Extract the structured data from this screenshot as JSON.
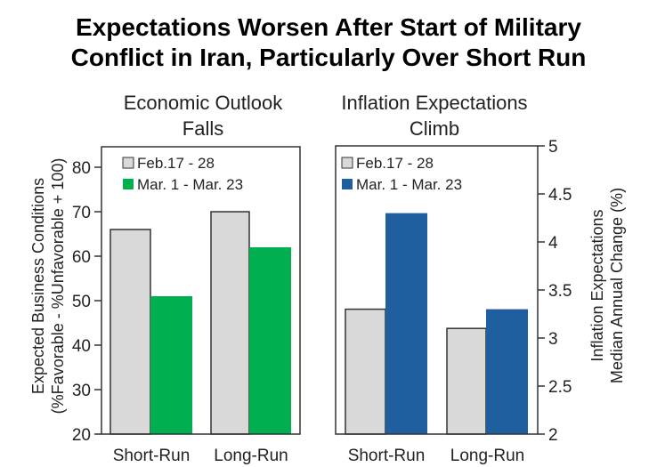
{
  "title": {
    "line1": "Expectations Worsen After Start of Military",
    "line2": "Conflict in Iran, Particularly Over Short Run"
  },
  "chart_data": [
    {
      "type": "bar",
      "title_lines": [
        "Economic Outlook",
        "Falls"
      ],
      "categories": [
        "Short-Run",
        "Long-Run"
      ],
      "series": [
        {
          "name": "Feb.17 - 28",
          "color": "#d9d9d9",
          "values": [
            66,
            70
          ]
        },
        {
          "name": "Mar. 1 - Mar. 23",
          "color": "#00b050",
          "values": [
            51,
            62
          ]
        }
      ],
      "ylabel_lines": [
        "Expected Business Conditions",
        "(%Favorable - %Unfavorable + 100)"
      ],
      "ylim": [
        20,
        85
      ],
      "yticks": [
        20,
        30,
        40,
        50,
        60,
        70,
        80
      ],
      "ytick_labels": [
        "20",
        "30",
        "40",
        "50",
        "60",
        "70",
        "80"
      ],
      "axis_side": "left",
      "legend": "top-left",
      "grid": false
    },
    {
      "type": "bar",
      "title_lines": [
        "Inflation Expectations",
        "Climb"
      ],
      "categories": [
        "Short-Run",
        "Long-Run"
      ],
      "series": [
        {
          "name": "Feb.17 - 28",
          "color": "#d9d9d9",
          "values": [
            3.3,
            3.1
          ]
        },
        {
          "name": "Mar. 1 - Mar. 23",
          "color": "#1f5fa0",
          "values": [
            4.3,
            3.3
          ]
        }
      ],
      "ylabel_lines": [
        "Inflation Expectations",
        "Median Annual Change (%)"
      ],
      "ylim": [
        2,
        5
      ],
      "yticks": [
        2,
        2.5,
        3,
        3.5,
        4,
        4.5,
        5
      ],
      "ytick_labels": [
        "2",
        "2.5",
        "3",
        "3.5",
        "4",
        "4.5",
        "5"
      ],
      "axis_side": "right",
      "legend": "top-left",
      "grid": false
    }
  ]
}
